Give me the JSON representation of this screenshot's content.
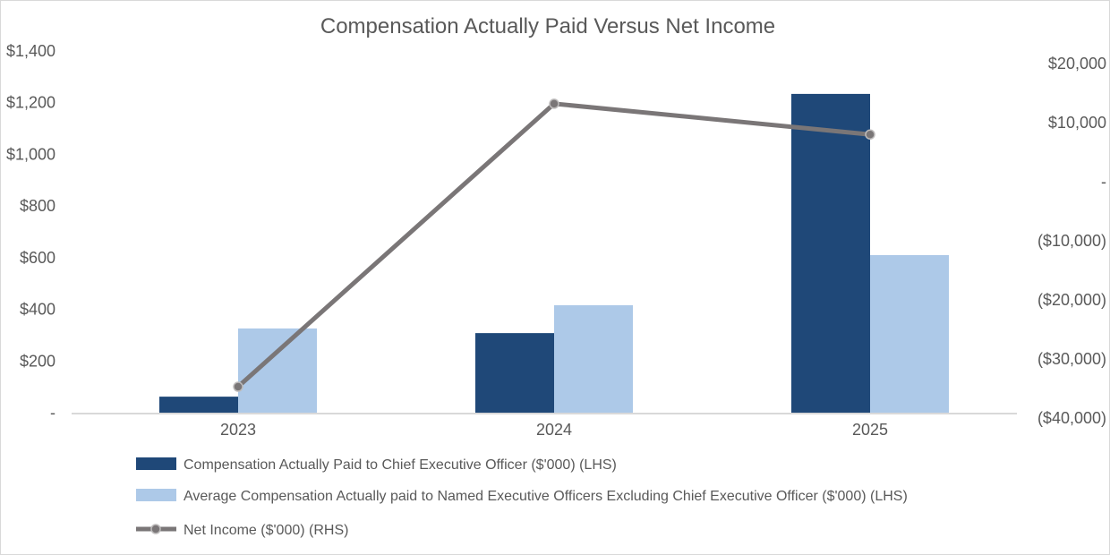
{
  "chart_data": {
    "type": "bar",
    "title": "Compensation Actually Paid Versus Net Income",
    "categories": [
      "2023",
      "2024",
      "2025"
    ],
    "series": [
      {
        "name": "Compensation Actually Paid to Chief Executive Officer ($'000) (LHS)",
        "type": "bar",
        "axis": "left",
        "color": "#1f4878",
        "values": [
          62,
          308,
          1234
        ]
      },
      {
        "name": "Average Compensation Actually paid to Named Executive Officers Excluding Chief Executive Officer ($'000) (LHS)",
        "type": "bar",
        "axis": "left",
        "color": "#adc9e8",
        "values": [
          326,
          416,
          610
        ]
      },
      {
        "name": "Net Income ($'000) (RHS)",
        "type": "line",
        "axis": "right",
        "color": "#7a7677",
        "values": [
          -34700,
          13200,
          8000
        ]
      }
    ],
    "left_axis": {
      "ylim": [
        0,
        1400
      ],
      "ticks": [
        0,
        200,
        400,
        600,
        800,
        1000,
        1200,
        1400
      ],
      "tick_labels": [
        "-",
        "$200",
        "$400",
        "$600",
        "$800",
        "$1,000",
        "$1,200",
        "$1,400"
      ]
    },
    "right_axis": {
      "ylim": [
        -40000,
        20000
      ],
      "ticks": [
        20000,
        10000,
        0,
        -10000,
        -20000,
        -30000,
        -40000
      ],
      "tick_labels": [
        "$20,000",
        "$10,000",
        "-",
        "($10,000)",
        "($20,000)",
        "($30,000)",
        "($40,000)"
      ]
    },
    "grid": false,
    "legend_position": "bottom"
  }
}
